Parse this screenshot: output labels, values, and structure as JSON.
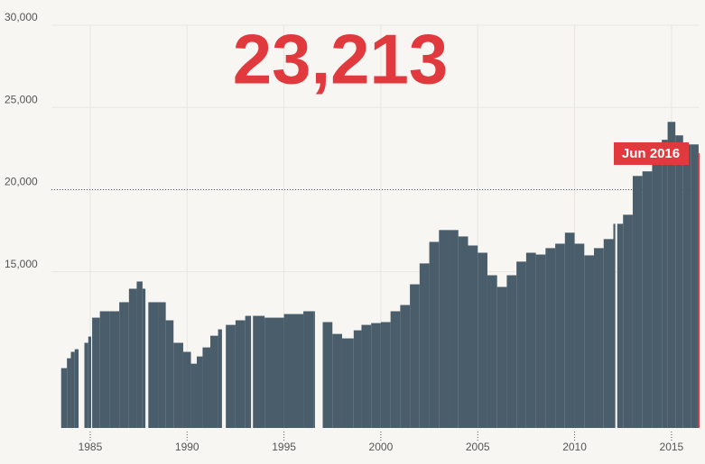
{
  "chart_data": {
    "type": "step-area",
    "headline": "23,213",
    "annotation": "Jun 2016",
    "color": "#4a5d6b",
    "accent_color": "#e03a3e",
    "x": [
      1983.5,
      1983.8,
      1984.0,
      1984.2,
      1984.4,
      1984.7,
      1984.9,
      1985.05,
      1985.1,
      1985.5,
      1986.0,
      1986.5,
      1987.0,
      1987.4,
      1987.7,
      1987.85,
      1988.0,
      1988.5,
      1988.9,
      1989.3,
      1989.8,
      1990.2,
      1990.5,
      1990.8,
      1991.2,
      1991.6,
      1991.8,
      1992.0,
      1992.5,
      1993.0,
      1993.3,
      1993.4,
      1994.0,
      1995.0,
      1996.0,
      1996.55,
      1996.6,
      1997.0,
      1997.5,
      1998.0,
      1998.6,
      1999.0,
      1999.5,
      2000.0,
      2000.5,
      2001.0,
      2001.5,
      2002.0,
      2002.5,
      2003.0,
      2003.5,
      2004.0,
      2004.5,
      2005.0,
      2005.5,
      2006.0,
      2006.5,
      2007.0,
      2007.5,
      2008.0,
      2008.5,
      2009.0,
      2009.5,
      2010.0,
      2010.5,
      2011.0,
      2011.5,
      2012.0,
      2012.1,
      2012.2,
      2012.5,
      2013.0,
      2013.5,
      2014.0,
      2014.5,
      2014.8,
      2015.2,
      2015.6,
      2016.0,
      2016.4
    ],
    "values": [
      9140,
      9740,
      10130,
      10290,
      null,
      10680,
      11060,
      null,
      12210,
      12600,
      12600,
      13150,
      13970,
      14410,
      13970,
      null,
      13150,
      13150,
      12050,
      10680,
      10130,
      9410,
      9850,
      10400,
      11110,
      11500,
      null,
      11770,
      12050,
      12320,
      null,
      12320,
      12210,
      12430,
      12600,
      12600,
      null,
      11940,
      11220,
      10950,
      11440,
      11770,
      11880,
      11940,
      12600,
      12980,
      14240,
      15510,
      16820,
      17540,
      17540,
      17150,
      16600,
      16160,
      14790,
      14080,
      14790,
      15620,
      16160,
      16050,
      16440,
      16710,
      17380,
      16710,
      16000,
      16440,
      16990,
      17920,
      null,
      17920,
      18470,
      20830,
      21110,
      21930,
      23030,
      24120,
      23300,
      22750,
      22750,
      22200
    ],
    "xlim": [
      1983,
      2016.45
    ],
    "ylim": [
      5500,
      30000
    ],
    "xticks": [
      1985,
      1990,
      1995,
      2000,
      2005,
      2010,
      2015
    ],
    "yticks": [
      {
        "value": 15000,
        "label": "15,000"
      },
      {
        "value": 20000,
        "label": "20,000"
      },
      {
        "value": 25000,
        "label": "25,000"
      },
      {
        "value": 30000,
        "label": "30,000"
      }
    ],
    "hline": 20000,
    "grid": true
  }
}
